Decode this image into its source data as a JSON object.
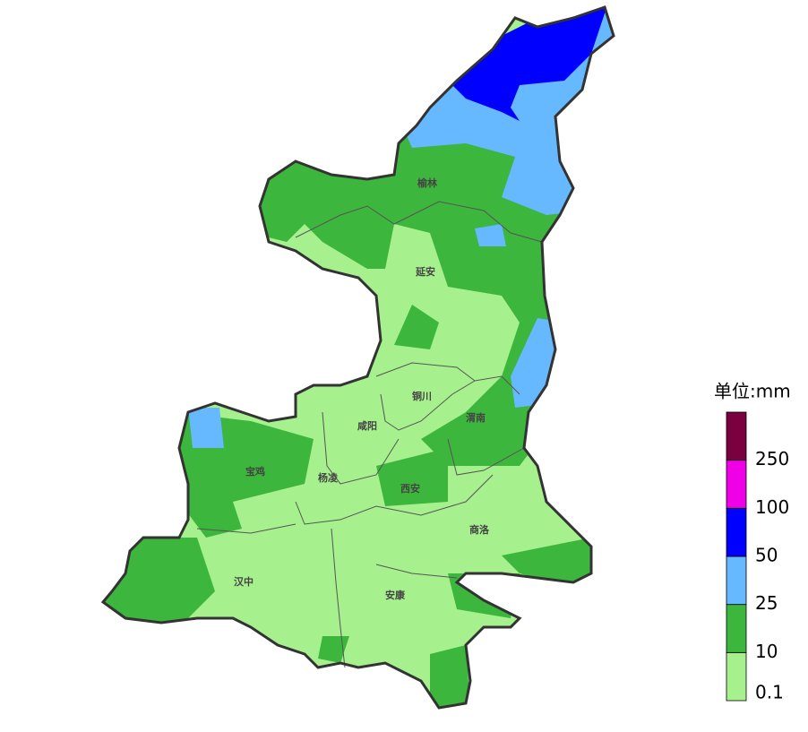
{
  "map": {
    "cities": [
      {
        "label": "榆林"
      },
      {
        "label": "延安"
      },
      {
        "label": "铜川"
      },
      {
        "label": "渭南"
      },
      {
        "label": "咸阳"
      },
      {
        "label": "宝鸡"
      },
      {
        "label": "杨凌"
      },
      {
        "label": "西安"
      },
      {
        "label": "商洛"
      },
      {
        "label": "汉中"
      },
      {
        "label": "安康"
      }
    ]
  },
  "legend": {
    "title": "单位:mm",
    "colors": [
      "#a6f08e",
      "#3cb63c",
      "#66b8ff",
      "#0000ff",
      "#f000e6",
      "#7a0040"
    ],
    "labels": [
      "0.1",
      "10",
      "25",
      "50",
      "100",
      "250"
    ]
  }
}
